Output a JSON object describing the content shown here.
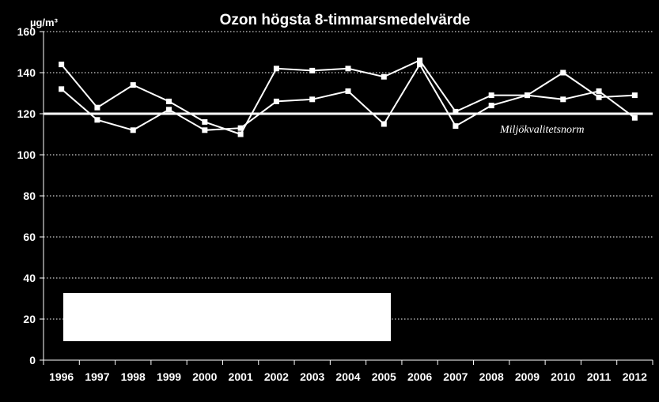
{
  "chart_data": {
    "type": "line",
    "title": "Ozon högsta 8-timmarsmedelvärde",
    "ylabel": "µg/m³",
    "xlabel": "",
    "ylim": [
      0,
      160
    ],
    "yticks": [
      0,
      20,
      40,
      60,
      80,
      100,
      120,
      140,
      160
    ],
    "grid": "horizontal-dotted",
    "categories": [
      "1996",
      "1997",
      "1998",
      "1999",
      "2000",
      "2001",
      "2002",
      "2003",
      "2004",
      "2005",
      "2006",
      "2007",
      "2008",
      "2009",
      "2010",
      "2011",
      "2012"
    ],
    "series": [
      {
        "values": [
          144,
          123,
          134,
          126,
          116,
          110,
          142,
          141,
          142,
          138,
          146,
          121,
          129,
          129,
          140,
          128,
          129
        ]
      },
      {
        "values": [
          132,
          117,
          112,
          122,
          112,
          113,
          126,
          127,
          131,
          115,
          144,
          114,
          124,
          129,
          127,
          131,
          118
        ]
      }
    ],
    "reference_line": {
      "value": 120,
      "label": "Miljökvalitetsnorm"
    },
    "legend": "",
    "colors": {
      "background": "#000000",
      "line": "#ffffff",
      "grid": "#ffffff"
    }
  }
}
